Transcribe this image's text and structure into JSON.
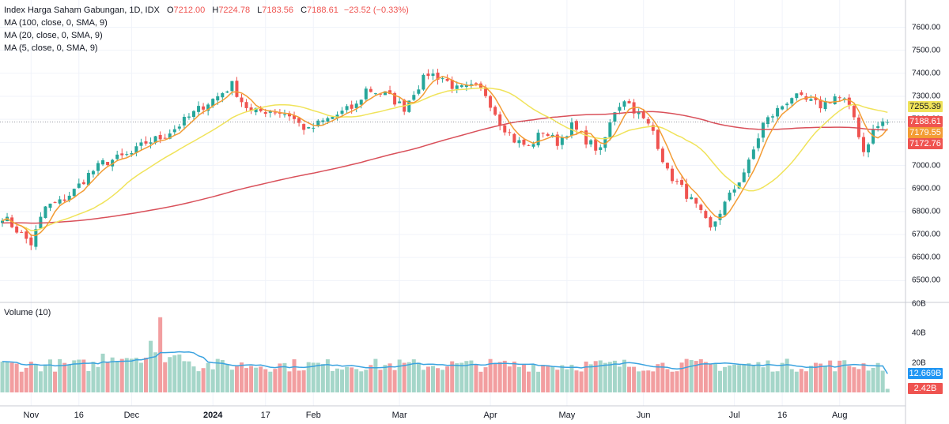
{
  "legend": {
    "title": "Index Harga Saham Gabungan, 1D, IDX",
    "open_label": "O",
    "open": "7212.00",
    "high_label": "H",
    "high": "7224.78",
    "low_label": "L",
    "low": "7183.56",
    "close_label": "C",
    "close": "7188.61",
    "change": "−23.52 (−0.33%)",
    "ma100": "MA (100, close, 0, SMA, 9)",
    "ma20": "MA (20, close, 0, SMA, 9)",
    "ma5": "MA (5, close, 0, SMA, 9)"
  },
  "volume_legend": "Volume (10)",
  "colors": {
    "up": "#26a69a",
    "down": "#ef5350",
    "up_volume": "#a5d6c9",
    "down_volume": "#f29ea0",
    "ma100": "#d9505a",
    "ma20": "#f0e35a",
    "ma5": "#f39c34",
    "volume_ma": "#3ba3e0",
    "grid": "#f0f3fa"
  },
  "chart_data": {
    "type": "candlestick",
    "y_ticks": [
      "7600.00",
      "7500.00",
      "7400.00",
      "7300.00",
      "7200.00",
      "7100.00",
      "7000.00",
      "6900.00",
      "6800.00",
      "6700.00",
      "6600.00",
      "6500.00"
    ],
    "ylim": [
      6460,
      7660
    ],
    "x_ticks": [
      {
        "label": "Nov",
        "index": 6,
        "bold": false
      },
      {
        "label": "16",
        "index": 16,
        "bold": false
      },
      {
        "label": "Dec",
        "index": 27,
        "bold": false
      },
      {
        "label": "2024",
        "index": 44,
        "bold": true
      },
      {
        "label": "17",
        "index": 55,
        "bold": false
      },
      {
        "label": "Feb",
        "index": 65,
        "bold": false
      },
      {
        "label": "Mar",
        "index": 83,
        "bold": false
      },
      {
        "label": "Apr",
        "index": 102,
        "bold": false
      },
      {
        "label": "May",
        "index": 118,
        "bold": false
      },
      {
        "label": "Jun",
        "index": 134,
        "bold": false
      },
      {
        "label": "Jul",
        "index": 153,
        "bold": false
      },
      {
        "label": "16",
        "index": 163,
        "bold": false
      },
      {
        "label": "Aug",
        "index": 175,
        "bold": false
      }
    ],
    "price_tags": [
      {
        "label": "7255.39",
        "value": 7255.39,
        "color": "#f0e35a",
        "text_color": "#131722"
      },
      {
        "label": "7188.61",
        "value": 7188.61,
        "color": "#ef5350",
        "text_color": "#ffffff"
      },
      {
        "label": "7179.55",
        "value": 7179.55,
        "color": "#f39c34",
        "text_color": "#ffffff"
      },
      {
        "label": "7172.76",
        "value": 7172.76,
        "color": "#ef5350",
        "text_color": "#ffffff"
      }
    ],
    "last_close": 7188.61,
    "volume_ticks": [
      "60B",
      "40B",
      "20B"
    ],
    "volume_ylim": [
      0,
      60
    ],
    "volume_tags": [
      {
        "label": "12.669B",
        "value": 12.669,
        "color": "#2196f3"
      },
      {
        "label": "2.42B",
        "value": 2.42,
        "color": "#ef5350"
      }
    ],
    "close_anchors": [
      [
        0,
        6780
      ],
      [
        4,
        6700
      ],
      [
        6,
        6660
      ],
      [
        9,
        6820
      ],
      [
        12,
        6840
      ],
      [
        15,
        6890
      ],
      [
        18,
        6960
      ],
      [
        21,
        7010
      ],
      [
        24,
        7030
      ],
      [
        27,
        7050
      ],
      [
        30,
        7100
      ],
      [
        33,
        7120
      ],
      [
        36,
        7160
      ],
      [
        39,
        7210
      ],
      [
        42,
        7260
      ],
      [
        45,
        7300
      ],
      [
        48,
        7350
      ],
      [
        50,
        7280
      ],
      [
        52,
        7230
      ],
      [
        56,
        7240
      ],
      [
        60,
        7220
      ],
      [
        62,
        7180
      ],
      [
        64,
        7150
      ],
      [
        66,
        7180
      ],
      [
        70,
        7220
      ],
      [
        74,
        7260
      ],
      [
        76,
        7330
      ],
      [
        80,
        7310
      ],
      [
        84,
        7250
      ],
      [
        86,
        7320
      ],
      [
        89,
        7400
      ],
      [
        92,
        7380
      ],
      [
        95,
        7330
      ],
      [
        99,
        7340
      ],
      [
        101,
        7310
      ],
      [
        104,
        7190
      ],
      [
        107,
        7110
      ],
      [
        110,
        7080
      ],
      [
        113,
        7150
      ],
      [
        116,
        7100
      ],
      [
        119,
        7170
      ],
      [
        122,
        7110
      ],
      [
        125,
        7060
      ],
      [
        128,
        7240
      ],
      [
        130,
        7290
      ],
      [
        133,
        7220
      ],
      [
        136,
        7150
      ],
      [
        139,
        6970
      ],
      [
        142,
        6900
      ],
      [
        145,
        6820
      ],
      [
        148,
        6720
      ],
      [
        150,
        6800
      ],
      [
        153,
        6900
      ],
      [
        156,
        7010
      ],
      [
        159,
        7180
      ],
      [
        162,
        7240
      ],
      [
        165,
        7300
      ],
      [
        168,
        7280
      ],
      [
        171,
        7260
      ],
      [
        174,
        7300
      ],
      [
        176,
        7280
      ],
      [
        178,
        7210
      ],
      [
        180,
        7060
      ],
      [
        182,
        7150
      ],
      [
        184,
        7188.61
      ]
    ]
  }
}
